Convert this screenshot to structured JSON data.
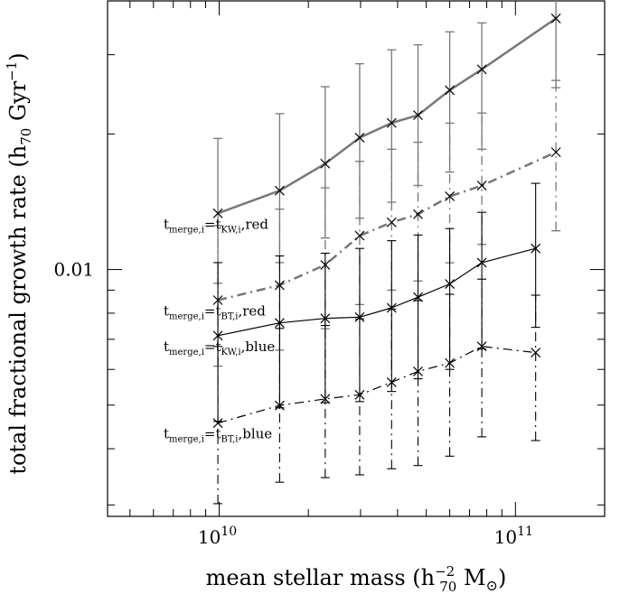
{
  "chart_data": {
    "type": "line",
    "xscale": "log",
    "yscale": "log",
    "xlim": [
      4200000000.0,
      200000000000.0
    ],
    "ylim": [
      0.00283,
      0.0395
    ],
    "xlabel": {
      "base": "mean stellar mass  (h",
      "sup": "−2",
      "sub": "70",
      "tail": "  M",
      "sun": "⊙",
      "close": ")"
    },
    "ylabel": {
      "base": "total fractional growth rate (h",
      "sub": "70",
      "mid": " Gyr",
      "sup": "−1",
      "close": ")"
    },
    "x_ticks": [
      {
        "value": 10000000000.0,
        "mantissa": "10",
        "exponent": "10"
      },
      {
        "value": 100000000000.0,
        "mantissa": "10",
        "exponent": "11"
      }
    ],
    "y_ticks": [
      {
        "value": 0.01,
        "label": "0.01"
      }
    ],
    "x_minor_ticks": [
      5000000000.0,
      6000000000.0,
      7000000000.0,
      8000000000.0,
      9000000000.0,
      20000000000.0,
      30000000000.0,
      40000000000.0,
      50000000000.0,
      60000000000.0,
      70000000000.0,
      80000000000.0,
      90000000000.0,
      200000000000.0
    ],
    "y_minor_ticks": [
      0.003,
      0.004,
      0.005,
      0.006,
      0.007,
      0.008,
      0.009,
      0.02,
      0.03
    ],
    "series": [
      {
        "id": "kw-red",
        "label": {
          "prefix": "t",
          "prefix_sub": "merge,i",
          "eq": "=t",
          "eq_sub": "KW,i",
          "suffix": ",red"
        },
        "color": "#777777",
        "dash": "solid",
        "width": 2.5,
        "x": [
          9900000000.0,
          16000000000.0,
          22800000000.0,
          29800000000.0,
          38200000000.0,
          46900000000.0,
          60000000000.0,
          77000000000.0,
          137000000000.0
        ],
        "y": [
          0.01333,
          0.01497,
          0.01718,
          0.01963,
          0.02116,
          0.02202,
          0.02502,
          0.02784,
          0.03611
        ],
        "err_low": [
          0.00932,
          0.01036,
          0.01175,
          0.013,
          0.01411,
          0.01537,
          0.01646,
          0.0185,
          0.02534
        ],
        "err_high": [
          0.01955,
          0.02219,
          0.02547,
          0.02864,
          0.03076,
          0.03156,
          0.03373,
          0.0353,
          0.04279
        ]
      },
      {
        "id": "bt-red",
        "label": {
          "prefix": "t",
          "prefix_sub": "merge,i",
          "eq": "=t",
          "eq_sub": "BT,i",
          "suffix": ",red"
        },
        "color": "#777777",
        "dash": "dashdot",
        "width": 2.5,
        "x": [
          9900000000.0,
          16000000000.0,
          22800000000.0,
          29800000000.0,
          38200000000.0,
          46900000000.0,
          60000000000.0,
          77000000000.0,
          137000000000.0
        ],
        "y": [
          0.00855,
          0.00923,
          0.01024,
          0.01189,
          0.01273,
          0.01327,
          0.01454,
          0.01536,
          0.01822
        ],
        "err_low": [
          0.0061,
          0.00662,
          0.00739,
          0.00836,
          0.009,
          0.00943,
          0.01035,
          0.01137,
          0.01219
        ],
        "err_high": [
          0.01252,
          0.01362,
          0.01519,
          0.01739,
          0.0185,
          0.01917,
          0.02114,
          0.02226,
          0.0263
        ]
      },
      {
        "id": "kw-blue",
        "label": {
          "prefix": "t",
          "prefix_sub": "merge,i",
          "eq": "=t",
          "eq_sub": "KW,i",
          "suffix": ",blue"
        },
        "color": "#000000",
        "dash": "solid",
        "width": 1.2,
        "x": [
          9900000000.0,
          16000000000.0,
          22800000000.0,
          29800000000.0,
          38200000000.0,
          46900000000.0,
          60000000000.0,
          77000000000.0,
          117000000000.0
        ],
        "y": [
          0.00713,
          0.00761,
          0.00779,
          0.00784,
          0.00822,
          0.00868,
          0.00929,
          0.01036,
          0.01114
        ],
        "err_low": [
          0.0046,
          0.00493,
          0.00506,
          0.00509,
          0.00536,
          0.00572,
          0.006,
          0.00666,
          0.00744
        ],
        "err_high": [
          0.01036,
          0.01072,
          0.01087,
          0.01114,
          0.01159,
          0.01193,
          0.01233,
          0.0134,
          0.01554
        ]
      },
      {
        "id": "bt-blue",
        "label": {
          "prefix": "t",
          "prefix_sub": "merge,i",
          "eq": "=t",
          "eq_sub": "BT,i",
          "suffix": ",blue"
        },
        "color": "#000000",
        "dash": "dashdot",
        "width": 1.2,
        "x": [
          9900000000.0,
          16000000000.0,
          22800000000.0,
          29800000000.0,
          38200000000.0,
          46900000000.0,
          60000000000.0,
          77000000000.0,
          117000000000.0
        ],
        "y": [
          0.00456,
          0.00499,
          0.00516,
          0.00527,
          0.00562,
          0.00594,
          0.0062,
          0.00675,
          0.00654
        ],
        "err_low": [
          0.00302,
          0.00337,
          0.00345,
          0.0035,
          0.00361,
          0.00367,
          0.00385,
          0.00425,
          0.00417
        ],
        "err_high": [
          0.00675,
          0.0074,
          0.00751,
          0.00777,
          0.00817,
          0.00853,
          0.00881,
          0.00952,
          0.00877
        ]
      }
    ]
  }
}
